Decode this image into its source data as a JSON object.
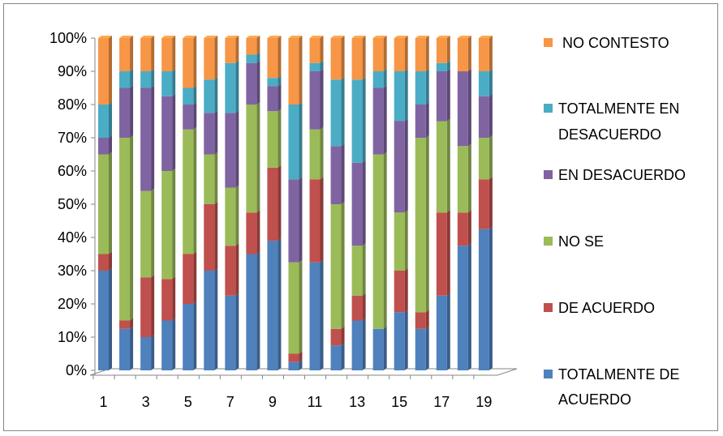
{
  "chart_data": {
    "type": "bar",
    "stacked": true,
    "percent_stacked": true,
    "three_d": true,
    "categories": [
      "1",
      "2",
      "3",
      "4",
      "5",
      "6",
      "7",
      "8",
      "9",
      "10",
      "11",
      "12",
      "13",
      "14",
      "15",
      "16",
      "17",
      "18",
      "19"
    ],
    "x_tick_labels": [
      "1",
      "3",
      "5",
      "7",
      "9",
      "11",
      "13",
      "15",
      "17",
      "19"
    ],
    "y_tick_labels": [
      "0%",
      "10%",
      "20%",
      "30%",
      "40%",
      "50%",
      "60%",
      "70%",
      "80%",
      "90%",
      "100%"
    ],
    "ylim": [
      0,
      100
    ],
    "grid": false,
    "legend_position": "right",
    "series": [
      {
        "name": "TOTALMENTE DE ACUERDO",
        "color": "#4F81BD",
        "values": [
          30,
          12.5,
          10,
          15,
          20,
          30,
          22.5,
          35,
          39,
          2.5,
          32.5,
          7.5,
          15,
          12.5,
          17.5,
          12.5,
          22.5,
          37.5,
          42.5
        ]
      },
      {
        "name": "DE ACUERDO",
        "color": "#C0504D",
        "values": [
          5,
          2.5,
          18,
          12.5,
          15,
          20,
          15,
          12.5,
          22,
          2.5,
          25,
          5,
          7.5,
          0,
          12.5,
          5,
          25,
          10,
          15
        ]
      },
      {
        "name": "NO SE",
        "color": "#9BBB59",
        "values": [
          30,
          55,
          26,
          32.5,
          37.5,
          15,
          17.5,
          32.5,
          17,
          27.5,
          15,
          37.5,
          15,
          52.5,
          17.5,
          52.5,
          27.5,
          20,
          12.5
        ]
      },
      {
        "name": "EN DESACUERDO",
        "color": "#8064A2",
        "values": [
          5,
          15,
          31,
          22.5,
          7.5,
          12.5,
          22.5,
          12.5,
          7.5,
          25,
          17.5,
          17.5,
          25,
          20,
          27.5,
          10,
          15,
          22.5,
          12.5
        ]
      },
      {
        "name": "TOTALMENTE EN DESACUERDO",
        "color": "#4BACC6",
        "values": [
          10,
          5,
          5,
          7.5,
          5,
          10,
          15,
          2.5,
          2.5,
          22.5,
          2.5,
          20,
          25,
          5,
          15,
          10,
          2.5,
          0,
          7.5
        ]
      },
      {
        "name": "NO CONTESTO",
        "color": "#F79646",
        "values": [
          20,
          10,
          10,
          10,
          15,
          12.5,
          7.5,
          5,
          12,
          20,
          7.5,
          12.5,
          12.5,
          10,
          10,
          10,
          7.5,
          10,
          10
        ]
      }
    ],
    "legend_lines": [
      [
        " NO CONTESTO"
      ],
      [
        "TOTALMENTE EN",
        "DESACUERDO"
      ],
      [
        "EN DESACUERDO"
      ],
      [
        "NO SE"
      ],
      [
        "DE ACUERDO"
      ],
      [
        "TOTALMENTE DE",
        "ACUERDO"
      ]
    ]
  }
}
